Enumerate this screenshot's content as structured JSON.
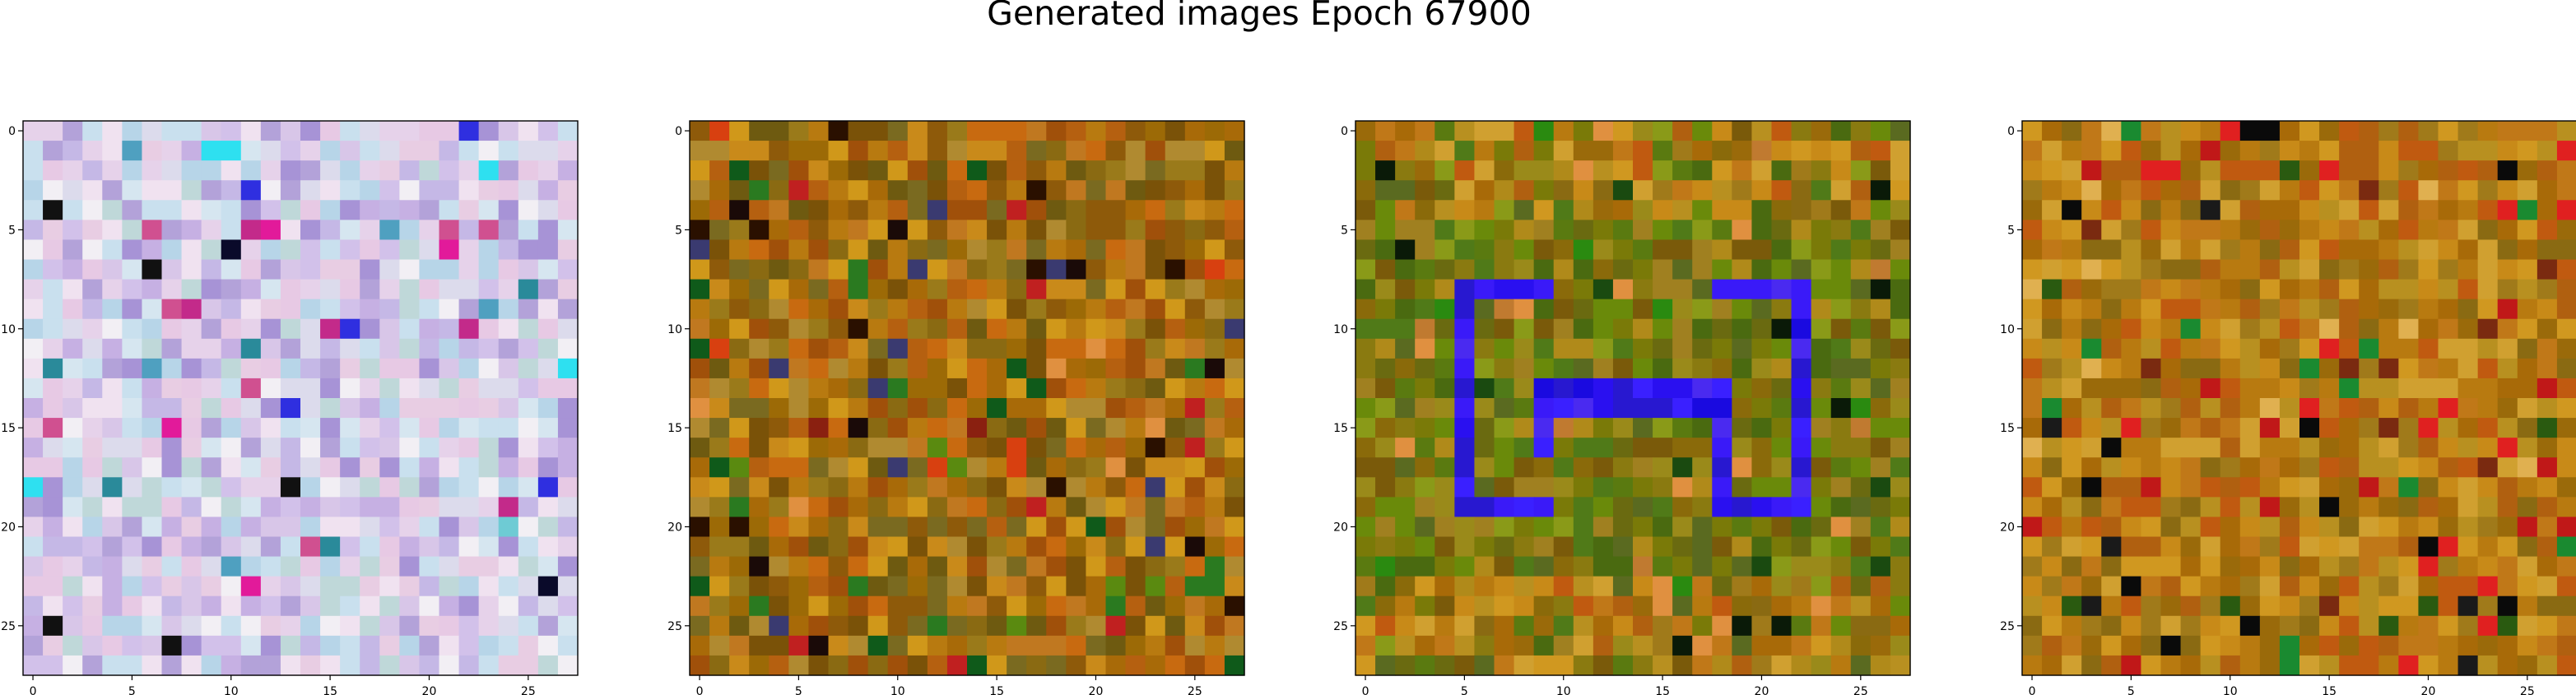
{
  "figure": {
    "title": "Generated images Epoch 67900"
  },
  "chart_data": [
    {
      "type": "heatmap",
      "title": "",
      "xlabel": "",
      "ylabel": "",
      "grid_size": [
        28,
        28
      ],
      "xlim": [
        -0.5,
        27.5
      ],
      "ylim": [
        27.5,
        -0.5
      ],
      "xticks": [
        0,
        5,
        10,
        15,
        20,
        25
      ],
      "yticks": [
        0,
        5,
        10,
        15,
        20,
        25
      ],
      "xtick_labels": [
        "0",
        "5",
        "10",
        "15",
        "20",
        "25"
      ],
      "ytick_labels": [
        "0",
        "5",
        "10",
        "15",
        "20",
        "25"
      ],
      "grid": false,
      "palette": "pastel lavender/pink/cyan noise with a few dark pixels"
    },
    {
      "type": "heatmap",
      "title": "",
      "xlabel": "",
      "ylabel": "",
      "grid_size": [
        28,
        28
      ],
      "xlim": [
        -0.5,
        27.5
      ],
      "ylim": [
        27.5,
        -0.5
      ],
      "xticks": [
        0,
        5,
        10,
        15,
        20,
        25
      ],
      "yticks": [
        0,
        5,
        10,
        15,
        20,
        25
      ],
      "xtick_labels": [
        "0",
        "5",
        "10",
        "15",
        "20",
        "25"
      ],
      "ytick_labels": [
        "0",
        "5",
        "10",
        "15",
        "20",
        "25"
      ],
      "grid": false,
      "palette": "orange/brown/olive noise"
    },
    {
      "type": "heatmap",
      "title": "",
      "xlabel": "",
      "ylabel": "",
      "grid_size": [
        28,
        28
      ],
      "xlim": [
        -0.5,
        27.5
      ],
      "ylim": [
        27.5,
        -0.5
      ],
      "xticks": [
        0,
        5,
        10,
        15,
        20,
        25
      ],
      "yticks": [
        0,
        5,
        10,
        15,
        20,
        25
      ],
      "xtick_labels": [
        "0",
        "5",
        "10",
        "15",
        "20",
        "25"
      ],
      "ytick_labels": [
        "0",
        "5",
        "10",
        "15",
        "20",
        "25"
      ],
      "grid": false,
      "palette": "olive/green/orange noise with blue rectangular pattern"
    },
    {
      "type": "heatmap",
      "title": "",
      "xlabel": "",
      "ylabel": "",
      "grid_size": [
        28,
        28
      ],
      "xlim": [
        -0.5,
        27.5
      ],
      "ylim": [
        27.5,
        -0.5
      ],
      "xticks": [
        0,
        5,
        10,
        15,
        20,
        25
      ],
      "yticks": [
        0,
        5,
        10,
        15,
        20,
        25
      ],
      "xtick_labels": [
        "0",
        "5",
        "10",
        "15",
        "20",
        "25"
      ],
      "ytick_labels": [
        "0",
        "5",
        "10",
        "15",
        "20",
        "25"
      ],
      "grid": false,
      "palette": "orange/brown/red noise with green accents"
    }
  ]
}
